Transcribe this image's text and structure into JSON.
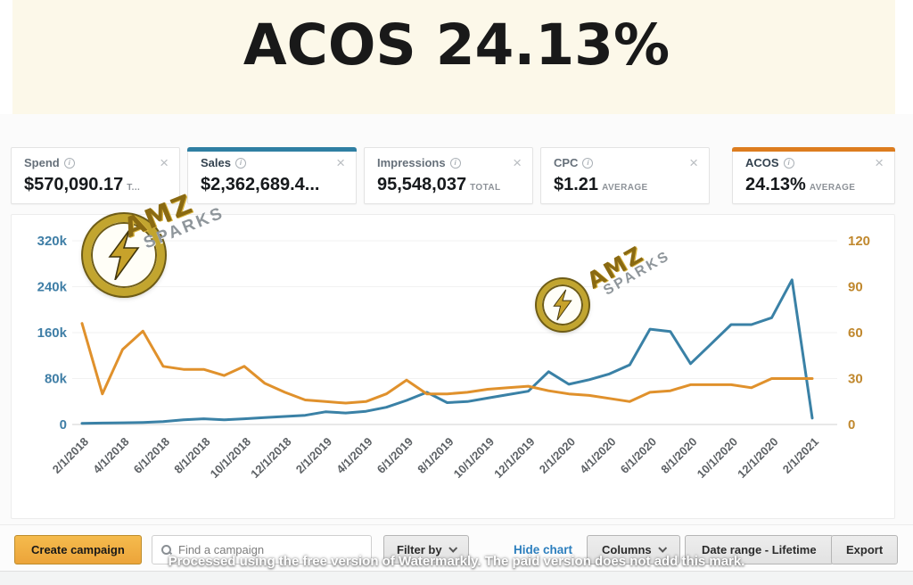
{
  "header": {
    "title": "ACOS 24.13%"
  },
  "metric_cards": [
    {
      "label": "Spend",
      "value": "$570,090.17",
      "suffix": "T...",
      "selected": false,
      "accent_color": ""
    },
    {
      "label": "Sales",
      "value": "$2,362,689.4...",
      "suffix": "",
      "selected": true,
      "accent_color": "#2f7fa3"
    },
    {
      "label": "Impressions",
      "value": "95,548,037",
      "suffix": "TOTAL",
      "selected": false,
      "accent_color": ""
    },
    {
      "label": "CPC",
      "value": "$1.21",
      "suffix": "AVERAGE",
      "selected": false,
      "accent_color": ""
    },
    {
      "label": "ACOS",
      "value": "24.13%",
      "suffix": "AVERAGE",
      "selected": true,
      "accent_color": "#dd7d1f"
    }
  ],
  "chart_data": {
    "type": "line",
    "x": [
      "2/1/2018",
      "3/1/2018",
      "4/1/2018",
      "5/1/2018",
      "6/1/2018",
      "7/1/2018",
      "8/1/2018",
      "9/1/2018",
      "10/1/2018",
      "11/1/2018",
      "12/1/2018",
      "1/1/2019",
      "2/1/2019",
      "3/1/2019",
      "4/1/2019",
      "5/1/2019",
      "6/1/2019",
      "7/1/2019",
      "8/1/2019",
      "9/1/2019",
      "10/1/2019",
      "11/1/2019",
      "12/1/2019",
      "1/1/2020",
      "2/1/2020",
      "3/1/2020",
      "4/1/2020",
      "5/1/2020",
      "6/1/2020",
      "7/1/2020",
      "8/1/2020",
      "9/1/2020",
      "10/1/2020",
      "11/1/2020",
      "12/1/2020",
      "1/1/2021",
      "2/1/2021"
    ],
    "x_tick_labels": [
      "2/1/2018",
      "4/1/2018",
      "6/1/2018",
      "8/1/2018",
      "10/1/2018",
      "12/1/2018",
      "2/1/2019",
      "4/1/2019",
      "6/1/2019",
      "8/1/2019",
      "10/1/2019",
      "12/1/2019",
      "2/1/2020",
      "4/1/2020",
      "6/1/2020",
      "8/1/2020",
      "10/1/2020",
      "12/1/2020",
      "2/1/2021"
    ],
    "series": [
      {
        "name": "Sales",
        "axis": "left",
        "color": "#3a81a6",
        "values": [
          2000,
          2500,
          3000,
          3500,
          5000,
          8000,
          10000,
          8000,
          10000,
          12000,
          14000,
          16000,
          22000,
          20000,
          23000,
          30000,
          42000,
          56000,
          38000,
          40000,
          46000,
          52000,
          58000,
          92000,
          70000,
          78000,
          88000,
          104000,
          166000,
          162000,
          106000,
          140000,
          174000,
          174000,
          186000,
          252000,
          11000
        ]
      },
      {
        "name": "ACOS",
        "axis": "right",
        "color": "#e0912c",
        "values": [
          66,
          20,
          49,
          61,
          38,
          36,
          36,
          32,
          38,
          27,
          21,
          16,
          15,
          14,
          15,
          20,
          29,
          20,
          20,
          21,
          23,
          24,
          25,
          22,
          20,
          19,
          17,
          15,
          21,
          22,
          26,
          26,
          26,
          24,
          30,
          30,
          30
        ]
      }
    ],
    "left_axis": {
      "label": "Sales",
      "ticks": [
        "0",
        "80k",
        "160k",
        "240k",
        "320k"
      ],
      "range": [
        0,
        320000
      ],
      "color": "#3f7ea6"
    },
    "right_axis": {
      "label": "ACOS",
      "ticks": [
        "0",
        "30",
        "60",
        "90",
        "120"
      ],
      "range": [
        0,
        120
      ],
      "color": "#c0882e"
    },
    "grid": true,
    "legend": "none"
  },
  "watermarks": {
    "brand_line1": "AMZ",
    "brand_line2": "SPARKS",
    "footer_note": "Processed using the free version of Watermarkly. The paid version does not add this mark."
  },
  "toolbar": {
    "create_campaign_label": "Create campaign",
    "search_placeholder": "Find a campaign",
    "filter_by_label": "Filter by",
    "hide_chart_label": "Hide chart",
    "columns_label": "Columns",
    "date_range_label": "Date range - Lifetime",
    "export_label": "Export"
  }
}
